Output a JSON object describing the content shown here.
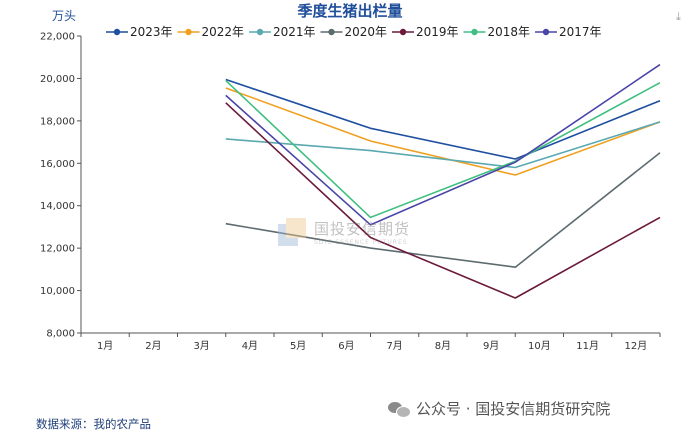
{
  "chart_data": {
    "type": "line",
    "title": "季度生猪出栏量",
    "ylabel": "万头",
    "categories": [
      "1月",
      "2月",
      "3月",
      "4月",
      "5月",
      "6月",
      "7月",
      "8月",
      "9月",
      "10月",
      "11月",
      "12月"
    ],
    "ylim": [
      8000,
      22000
    ],
    "yticks": [
      "8,000",
      "10,000",
      "12,000",
      "14,000",
      "16,000",
      "18,000",
      "20,000",
      "22,000"
    ],
    "ytick_values": [
      8000,
      10000,
      12000,
      14000,
      16000,
      18000,
      20000,
      22000
    ],
    "grid": false,
    "legend": "top",
    "series": [
      {
        "name": "2023年",
        "color": "#1f4fa0",
        "x": [
          3.5,
          6.5,
          9.5,
          12.5
        ],
        "values": [
          19950,
          17650,
          16200,
          18950
        ]
      },
      {
        "name": "2022年",
        "color": "#f0a020",
        "x": [
          3.5,
          6.5,
          9.5,
          12.5
        ],
        "values": [
          19550,
          17050,
          15450,
          17950
        ]
      },
      {
        "name": "2021年",
        "color": "#5aa8b0",
        "x": [
          3.5,
          6.5,
          9.5,
          12.5
        ],
        "values": [
          17150,
          16600,
          15800,
          17950
        ]
      },
      {
        "name": "2020年",
        "color": "#5d6b70",
        "x": [
          3.5,
          6.5,
          9.5,
          12.5
        ],
        "values": [
          13150,
          12000,
          11100,
          16500
        ]
      },
      {
        "name": "2019年",
        "color": "#6b1a3c",
        "x": [
          3.5,
          6.5,
          9.5,
          12.5
        ],
        "values": [
          18850,
          12500,
          9650,
          13450
        ]
      },
      {
        "name": "2018年",
        "color": "#3fbf80",
        "x": [
          3.5,
          6.5,
          9.5,
          12.5
        ],
        "values": [
          19900,
          13450,
          16100,
          19800
        ]
      },
      {
        "name": "2017年",
        "color": "#4a45a8",
        "x": [
          3.5,
          6.5,
          9.5,
          12.5
        ],
        "values": [
          19200,
          13100,
          16050,
          20650
        ]
      }
    ]
  },
  "source": "数据来源：我的农产品",
  "watermark": {
    "brand": "公众号 · 国投安信期货研究院",
    "center_cn": "国投安信期货",
    "center_en": "SDIC ESSENCE FUTURES"
  },
  "icons": {
    "wechat": "wechat-icon",
    "corner": "download-icon"
  }
}
